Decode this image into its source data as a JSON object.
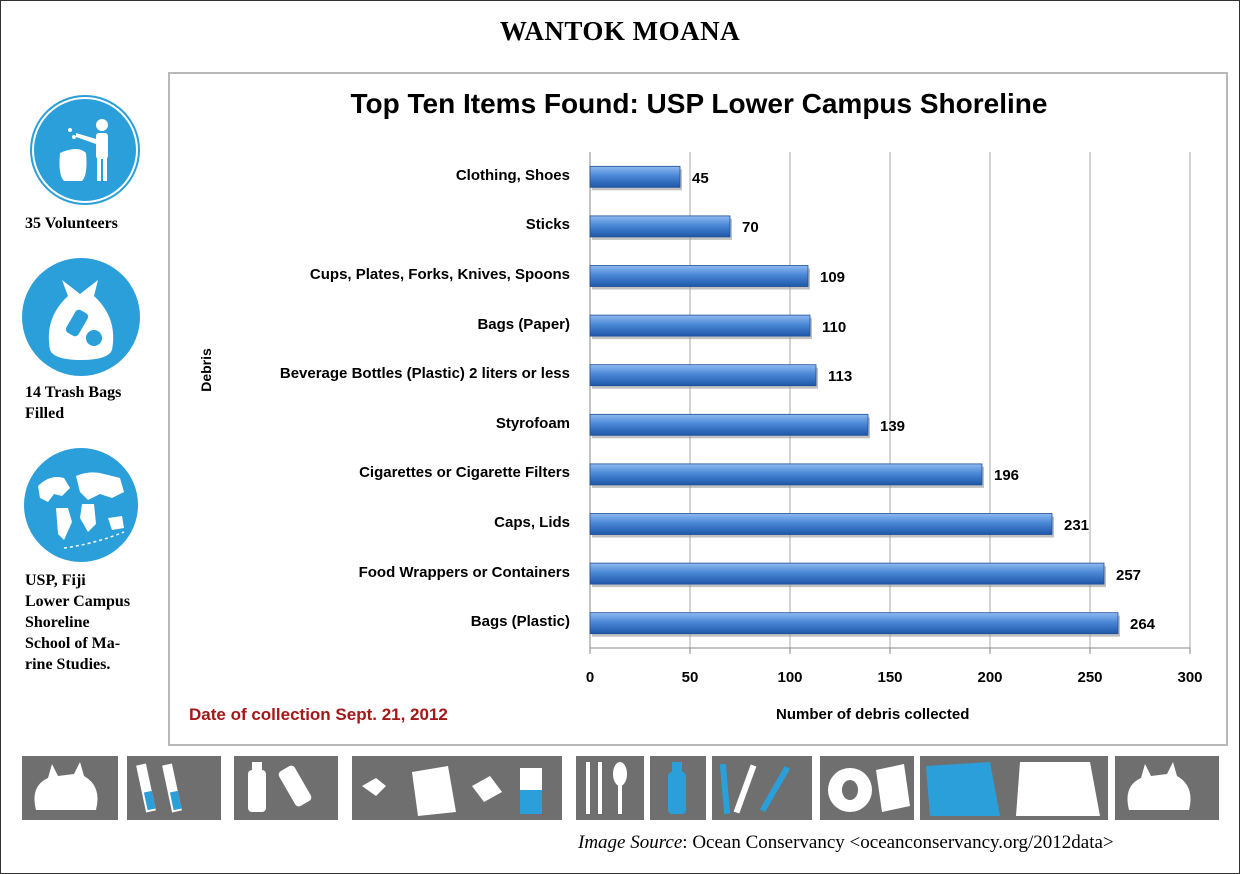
{
  "header": {
    "title": "WANTOK MOANA"
  },
  "stats": [
    {
      "icon": "person-disposing-trash-icon",
      "text_lines": [
        "35 Volunteers"
      ]
    },
    {
      "icon": "trash-bag-icon",
      "text_lines": [
        "14 Trash Bags",
        "Filled"
      ]
    },
    {
      "icon": "globe-map-icon",
      "text_lines": [
        "USP, Fiji",
        "Lower Campus",
        "Shoreline",
        "School of Ma-",
        "rine Studies."
      ]
    }
  ],
  "footer": {
    "source_prefix": "Image Source",
    "source_text": ": Ocean Conservancy <oceanconservancy.org/2012data>",
    "tiles": [
      "plastic-bag-icon",
      "cigarette-filters-icon",
      "bottles-icon",
      "food-wrappers-icon",
      "cutlery-bottle-icon",
      "straws-icon",
      "cups-icon",
      "paper-bags-icon",
      "plastic-bag-icon"
    ]
  },
  "chart_data": {
    "type": "bar",
    "orientation": "horizontal",
    "title": "Top Ten Items Found: USP Lower Campus Shoreline",
    "xlabel": "Number of debris collected",
    "ylabel": "Debris",
    "note": "Date of collection Sept. 21, 2012",
    "categories": [
      "Clothing, Shoes",
      "Sticks",
      "Cups, Plates,  Forks, Knives, Spoons",
      "Bags (Paper)",
      "Beverage Bottles (Plastic) 2 liters or less",
      "Styrofoam",
      "Cigarettes or Cigarette Filters",
      "Caps, Lids",
      "Food Wrappers or Containers",
      "Bags (Plastic)"
    ],
    "values": [
      45,
      70,
      109,
      110,
      113,
      139,
      196,
      231,
      257,
      264
    ],
    "xlim": [
      0,
      300
    ],
    "xticks": [
      "0",
      "50",
      "100",
      "150",
      "200",
      "250",
      "300"
    ],
    "grid": true,
    "bar_color": "#3f7fcf"
  }
}
